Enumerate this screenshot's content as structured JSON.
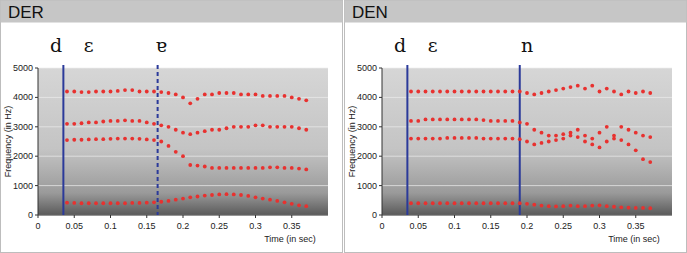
{
  "chart_data": [
    {
      "type": "scatter",
      "title": "DER",
      "x_label": "Time (in sec)",
      "y_label": "Frequency (in Hz)",
      "xlim": [
        0,
        0.4
      ],
      "xticks": [
        0,
        0.05,
        0.1,
        0.15,
        0.2,
        0.25,
        0.3,
        0.35
      ],
      "ylim": [
        0,
        5000
      ],
      "yticks": [
        0,
        1000,
        2000,
        3000,
        4000,
        5000
      ],
      "grid": true,
      "marker": "circle",
      "x": [
        0.04,
        0.05,
        0.06,
        0.07,
        0.08,
        0.09,
        0.1,
        0.11,
        0.12,
        0.13,
        0.14,
        0.15,
        0.16,
        0.17,
        0.18,
        0.19,
        0.2,
        0.21,
        0.22,
        0.23,
        0.24,
        0.25,
        0.26,
        0.27,
        0.28,
        0.29,
        0.3,
        0.31,
        0.32,
        0.33,
        0.34,
        0.35,
        0.36,
        0.37
      ],
      "series": [
        {
          "color": "#e8312f",
          "values": [
            420,
            410,
            400,
            400,
            400,
            400,
            400,
            400,
            400,
            410,
            410,
            420,
            430,
            450,
            480,
            520,
            560,
            600,
            630,
            660,
            680,
            700,
            710,
            700,
            680,
            650,
            600,
            560,
            520,
            480,
            430,
            380,
            330,
            300
          ]
        },
        {
          "color": "#e8312f",
          "values": [
            2550,
            2560,
            2560,
            2570,
            2580,
            2580,
            2590,
            2600,
            2600,
            2600,
            2590,
            2570,
            2550,
            2500,
            2350,
            2150,
            2000,
            1700,
            1680,
            1650,
            1600,
            1600,
            1600,
            1600,
            1600,
            1600,
            1600,
            1600,
            1620,
            1620,
            1600,
            1600,
            1580,
            1550
          ]
        },
        {
          "color": "#e8312f",
          "values": [
            3100,
            3100,
            3120,
            3150,
            3150,
            3180,
            3200,
            3200,
            3220,
            3200,
            3200,
            3150,
            3100,
            3050,
            3000,
            2900,
            2800,
            2750,
            2800,
            2850,
            2900,
            2900,
            2950,
            3000,
            3000,
            3000,
            3050,
            3050,
            3000,
            3000,
            3000,
            3000,
            2950,
            2900
          ]
        },
        {
          "color": "#e8312f",
          "values": [
            4200,
            4200,
            4180,
            4180,
            4200,
            4200,
            4200,
            4220,
            4250,
            4250,
            4200,
            4200,
            4200,
            4180,
            4150,
            4100,
            4000,
            3800,
            3950,
            4100,
            4100,
            4150,
            4150,
            4150,
            4100,
            4100,
            4100,
            4050,
            4050,
            4050,
            4050,
            4000,
            3950,
            3900
          ]
        }
      ],
      "boundaries": [
        {
          "x": 0.035,
          "line_style": "solid",
          "color": "#2b3a9a"
        },
        {
          "x": 0.165,
          "line_style": "dashed",
          "color": "#2b3a9a"
        }
      ],
      "annotations": [
        {
          "text": "d",
          "x": 0.025
        },
        {
          "text": "ɛ",
          "x": 0.07
        },
        {
          "text": "ɐ",
          "x": 0.17
        }
      ]
    },
    {
      "type": "scatter",
      "title": "DEN",
      "x_label": "Time (in sec)",
      "y_label": "Frequency (in Hz)",
      "xlim": [
        0,
        0.4
      ],
      "xticks": [
        0,
        0.05,
        0.1,
        0.15,
        0.2,
        0.25,
        0.3,
        0.35
      ],
      "ylim": [
        0,
        5000
      ],
      "yticks": [
        0,
        1000,
        2000,
        3000,
        4000,
        5000
      ],
      "grid": true,
      "marker": "circle",
      "x": [
        0.04,
        0.05,
        0.06,
        0.07,
        0.08,
        0.09,
        0.1,
        0.11,
        0.12,
        0.13,
        0.14,
        0.15,
        0.16,
        0.17,
        0.18,
        0.19,
        0.2,
        0.21,
        0.22,
        0.23,
        0.24,
        0.25,
        0.26,
        0.27,
        0.28,
        0.29,
        0.3,
        0.31,
        0.32,
        0.33,
        0.34,
        0.35,
        0.36,
        0.37
      ],
      "series": [
        {
          "color": "#e8312f",
          "values": [
            400,
            400,
            400,
            400,
            400,
            400,
            400,
            400,
            400,
            400,
            400,
            400,
            400,
            400,
            400,
            400,
            380,
            350,
            320,
            300,
            290,
            300,
            320,
            300,
            300,
            320,
            330,
            300,
            280,
            260,
            250,
            240,
            240,
            230
          ]
        },
        {
          "color": "#e8312f",
          "values": [
            2600,
            2600,
            2600,
            2600,
            2600,
            2620,
            2620,
            2620,
            2620,
            2620,
            2600,
            2600,
            2600,
            2600,
            2600,
            2580,
            2500,
            2400,
            2450,
            2500,
            2550,
            2600,
            2700,
            2650,
            2500,
            2400,
            2300,
            2500,
            2600,
            2550,
            2400,
            2200,
            1900,
            1800
          ]
        },
        {
          "color": "#e8312f",
          "values": [
            3200,
            3200,
            3250,
            3250,
            3250,
            3250,
            3250,
            3250,
            3250,
            3250,
            3230,
            3200,
            3200,
            3200,
            3200,
            3150,
            3100,
            2900,
            2800,
            2700,
            2700,
            2750,
            2800,
            2900,
            2700,
            2600,
            2800,
            3000,
            2700,
            3000,
            2900,
            2800,
            2700,
            2650
          ]
        },
        {
          "color": "#e8312f",
          "values": [
            4200,
            4200,
            4200,
            4200,
            4200,
            4200,
            4200,
            4200,
            4200,
            4200,
            4200,
            4200,
            4200,
            4200,
            4200,
            4200,
            4150,
            4100,
            4150,
            4200,
            4250,
            4300,
            4350,
            4400,
            4300,
            4400,
            4200,
            4300,
            4200,
            4100,
            4200,
            4150,
            4200,
            4150
          ]
        }
      ],
      "boundaries": [
        {
          "x": 0.035,
          "line_style": "solid",
          "color": "#2b3a9a"
        },
        {
          "x": 0.19,
          "line_style": "solid",
          "color": "#2b3a9a"
        }
      ],
      "annotations": [
        {
          "text": "d",
          "x": 0.025
        },
        {
          "text": "ɛ",
          "x": 0.07
        },
        {
          "text": "n",
          "x": 0.2
        }
      ]
    }
  ]
}
